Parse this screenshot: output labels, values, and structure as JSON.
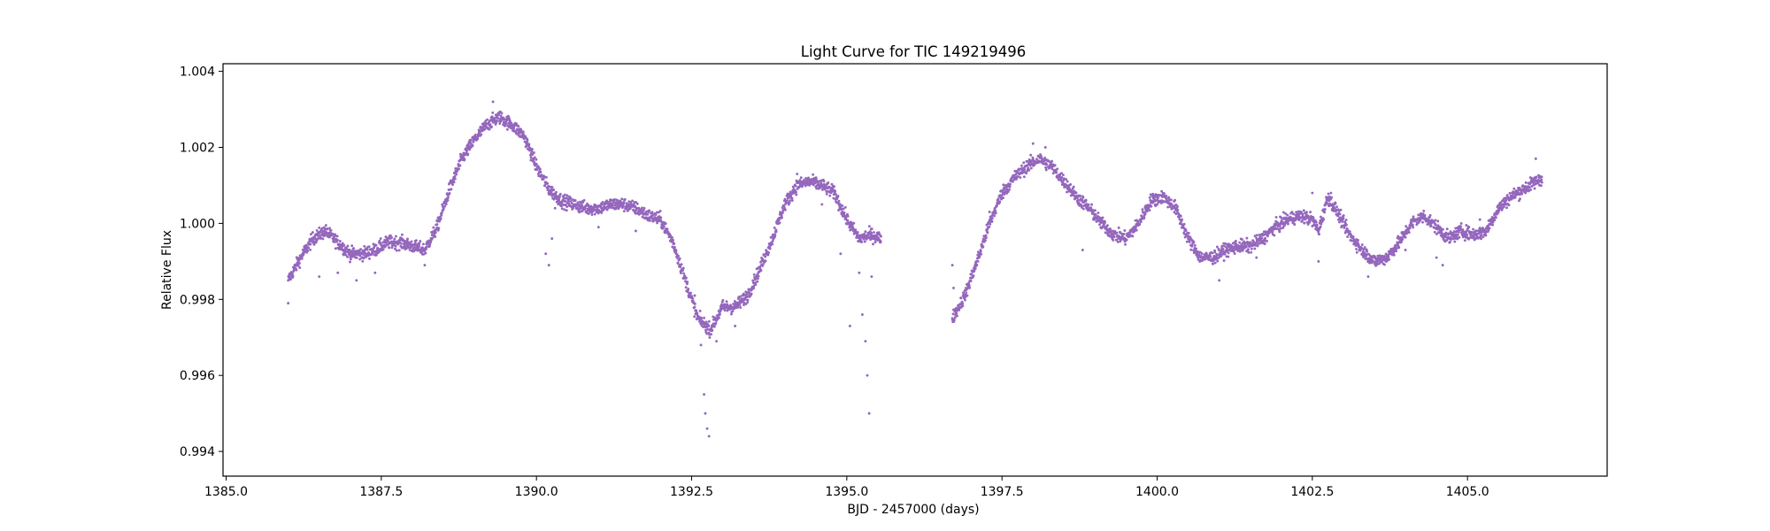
{
  "chart_data": {
    "type": "scatter",
    "title": "Light Curve for TIC 149219496",
    "xlabel": "BJD - 2457000 (days)",
    "ylabel": "Relative Flux",
    "xlim": [
      1384.95,
      1407.25
    ],
    "ylim": [
      0.99335,
      1.0042
    ],
    "xticks": [
      1385.0,
      1387.5,
      1390.0,
      1392.5,
      1395.0,
      1397.5,
      1400.0,
      1402.5,
      1405.0
    ],
    "xtick_labels": [
      "1385.0",
      "1387.5",
      "1390.0",
      "1392.5",
      "1395.0",
      "1397.5",
      "1400.0",
      "1402.5",
      "1405.0"
    ],
    "yticks": [
      0.994,
      0.996,
      0.998,
      1.0,
      1.002,
      1.004
    ],
    "ytick_labels": [
      "0.994",
      "0.996",
      "0.998",
      "1.000",
      "1.002",
      "1.004"
    ],
    "grid": false,
    "marker_color": "#9467bd",
    "series": [
      {
        "x": [
          1386.0,
          1386.2,
          1386.4,
          1386.6,
          1386.8,
          1387.0,
          1387.2,
          1387.4,
          1387.6,
          1387.8,
          1388.0,
          1388.2,
          1388.4,
          1388.6,
          1388.8,
          1389.0,
          1389.2,
          1389.4,
          1389.6,
          1389.8,
          1390.0,
          1390.2,
          1390.4,
          1390.6,
          1390.8,
          1391.0,
          1391.2,
          1391.4,
          1391.6,
          1391.8,
          1392.0,
          1392.2,
          1392.4,
          1392.6,
          1392.8,
          1393.0,
          1393.2,
          1393.4,
          1393.6,
          1393.8,
          1394.0,
          1394.2,
          1394.4,
          1394.6,
          1394.8,
          1395.0,
          1395.2,
          1395.4,
          1395.55
        ],
        "y": [
          0.9985,
          0.9991,
          0.9996,
          0.9998,
          0.9995,
          0.9992,
          0.9992,
          0.9993,
          0.9995,
          0.9995,
          0.9994,
          0.9993,
          0.9999,
          1.0009,
          1.0017,
          1.0022,
          1.0026,
          1.0028,
          1.0026,
          1.0023,
          1.0015,
          1.0009,
          1.0006,
          1.0005,
          1.0004,
          1.0004,
          1.0005,
          1.0005,
          1.0004,
          1.0002,
          1.0001,
          0.9995,
          0.9985,
          0.9975,
          0.9972,
          0.9978,
          0.9978,
          0.9981,
          0.9988,
          0.9996,
          1.0005,
          1.001,
          1.0011,
          1.001,
          1.0008,
          1.0001,
          0.9996,
          0.9997,
          0.9996
        ]
      },
      {
        "x": [
          1396.7,
          1396.9,
          1397.1,
          1397.3,
          1397.5,
          1397.7,
          1397.9,
          1398.1,
          1398.3,
          1398.5,
          1398.7,
          1398.9,
          1399.1,
          1399.3,
          1399.5,
          1399.7,
          1399.9,
          1400.1,
          1400.3,
          1400.5,
          1400.7,
          1400.9,
          1401.1,
          1401.3,
          1401.5,
          1401.7,
          1401.9,
          1402.1,
          1402.3,
          1402.5,
          1402.6,
          1402.75,
          1402.9,
          1403.1,
          1403.3,
          1403.5,
          1403.7,
          1403.9,
          1404.1,
          1404.3,
          1404.5,
          1404.7,
          1404.9,
          1405.1,
          1405.3,
          1405.5,
          1405.7,
          1405.9,
          1406.1,
          1406.2
        ],
        "y": [
          0.9975,
          0.9981,
          0.999,
          1.0,
          1.0008,
          1.0012,
          1.0015,
          1.0017,
          1.0015,
          1.0011,
          1.0007,
          1.0004,
          1.0,
          0.9997,
          0.9996,
          1.0,
          1.0006,
          1.0007,
          1.0004,
          0.9996,
          0.9991,
          0.9991,
          0.9993,
          0.9994,
          0.9994,
          0.9996,
          0.9999,
          1.0001,
          1.0002,
          1.0001,
          0.9998,
          1.0007,
          1.0003,
          0.9997,
          0.9993,
          0.999,
          0.9991,
          0.9995,
          1.0,
          1.0002,
          0.9999,
          0.9996,
          0.9998,
          0.9997,
          0.9998,
          1.0004,
          1.0007,
          1.0009,
          1.0011,
          1.0012
        ]
      }
    ],
    "outliers": {
      "x": [
        1386.0,
        1386.5,
        1386.8,
        1387.1,
        1387.4,
        1388.2,
        1389.3,
        1390.15,
        1390.2,
        1390.25,
        1390.3,
        1391.0,
        1391.6,
        1392.55,
        1392.6,
        1392.65,
        1392.7,
        1392.72,
        1392.75,
        1392.78,
        1392.9,
        1393.2,
        1394.2,
        1394.6,
        1394.9,
        1395.05,
        1395.2,
        1395.25,
        1395.3,
        1395.33,
        1395.36,
        1395.4,
        1396.7,
        1396.72,
        1396.75,
        1397.3,
        1398.0,
        1398.2,
        1398.8,
        1400.4,
        1401.0,
        1401.6,
        1402.5,
        1402.6,
        1402.8,
        1403.4,
        1404.0,
        1404.5,
        1404.6,
        1405.2,
        1406.1
      ],
      "y": [
        0.9979,
        0.9986,
        0.9987,
        0.9985,
        0.9987,
        0.9989,
        1.0032,
        0.9992,
        0.9989,
        0.9996,
        1.0004,
        0.9999,
        0.9998,
        0.9981,
        0.9975,
        0.9968,
        0.9955,
        0.995,
        0.9946,
        0.9944,
        0.9969,
        0.9973,
        1.0013,
        1.0005,
        0.9992,
        0.9973,
        0.9987,
        0.9976,
        0.9969,
        0.996,
        0.995,
        0.9986,
        0.9989,
        0.9983,
        0.9977,
        1.0003,
        1.0021,
        1.002,
        0.9993,
        1.0001,
        0.9985,
        0.9991,
        1.0008,
        0.999,
        1.0008,
        0.9986,
        0.9993,
        0.9991,
        0.9989,
        1.0001,
        1.0017
      ]
    }
  }
}
